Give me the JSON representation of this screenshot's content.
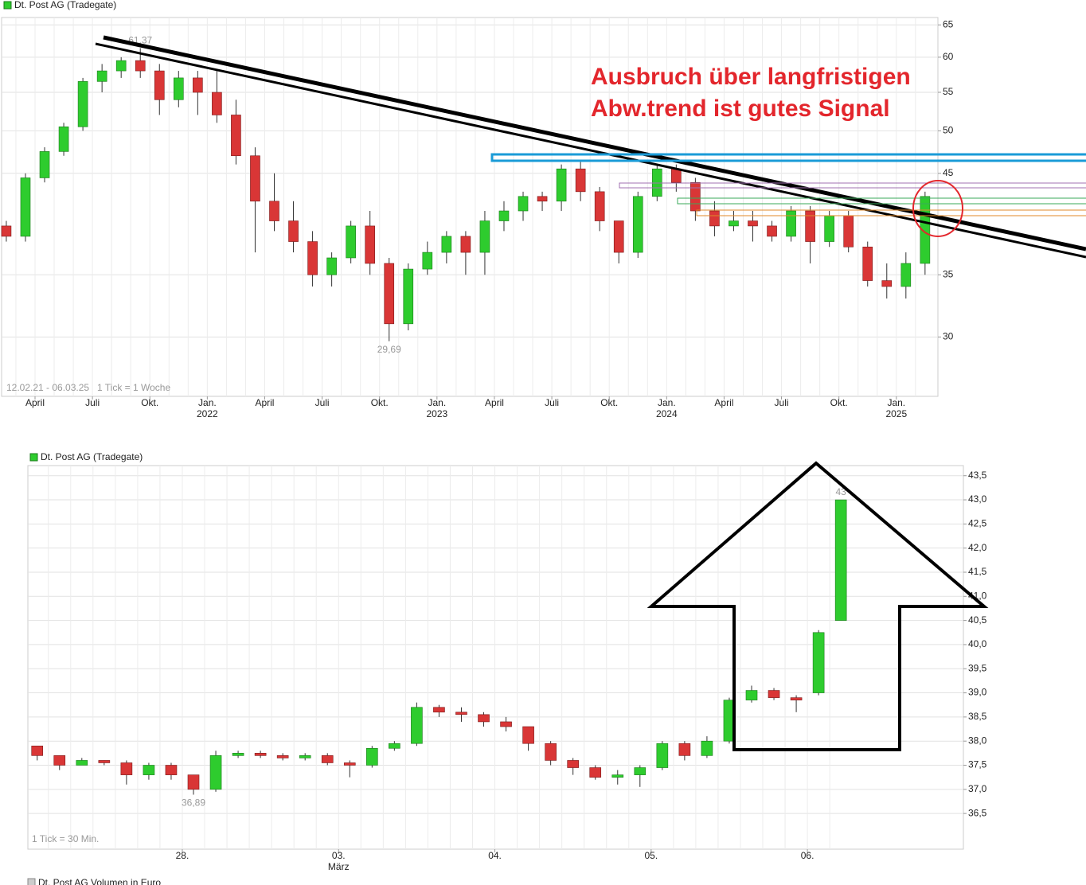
{
  "chart_data": [
    {
      "type": "candlestick",
      "series_name": "Dt. Post AG (Tradegate)",
      "up_color": "#2ecc2e",
      "down_color": "#d93636",
      "period": "12.02.21 - 06.03.25",
      "interval": "1 Tick = 1 Woche",
      "log_scale": true,
      "grid": true,
      "categories": [
        null,
        null,
        "April",
        null,
        null,
        "Juli",
        null,
        null,
        "Okt.",
        null,
        null,
        "Jan.",
        null,
        null,
        "April",
        null,
        null,
        "Juli",
        null,
        null,
        "Okt.",
        null,
        null,
        "Jan.",
        null,
        null,
        "April",
        null,
        null,
        "Juli",
        null,
        null,
        "Okt.",
        null,
        null,
        "Jan.",
        null,
        null,
        "April",
        null,
        null,
        "Juli",
        null,
        null,
        "Okt.",
        null,
        null,
        "Jan.",
        null
      ],
      "years": [
        null,
        null,
        null,
        null,
        null,
        null,
        null,
        null,
        null,
        null,
        null,
        "2022",
        null,
        null,
        null,
        null,
        null,
        null,
        null,
        null,
        null,
        null,
        null,
        "2023",
        null,
        null,
        null,
        null,
        null,
        null,
        null,
        null,
        null,
        null,
        null,
        "2024",
        null,
        null,
        null,
        null,
        null,
        null,
        null,
        null,
        null,
        null,
        null,
        "2025",
        null
      ],
      "open": [
        39.5,
        38.5,
        44.5,
        47.5,
        50.5,
        56.5,
        58,
        59.5,
        58,
        54,
        57,
        55,
        52,
        47,
        42,
        40,
        38,
        35,
        36.5,
        39.5,
        36,
        31,
        35.5,
        37,
        38.5,
        37,
        40,
        41,
        42.5,
        42,
        45.5,
        43,
        40,
        37,
        42.5,
        45.5,
        44,
        41,
        39.5,
        40,
        39.5,
        38.5,
        41,
        38,
        40.5,
        37.5,
        34.5,
        34,
        36
      ],
      "high": [
        40,
        45,
        48,
        51,
        57,
        59,
        60,
        61.37,
        59,
        58,
        58,
        58,
        54,
        48,
        45,
        42,
        39,
        37,
        40,
        41,
        36.5,
        36,
        38,
        39,
        39,
        41,
        42,
        43,
        43,
        46,
        46.5,
        43.5,
        40,
        43,
        46,
        46,
        44.5,
        42,
        41,
        41,
        40,
        41.5,
        41.5,
        41,
        41,
        38,
        36,
        37,
        43
      ],
      "low": [
        38,
        38,
        44,
        47,
        50,
        55,
        57,
        57,
        52,
        53,
        52,
        51,
        46,
        37,
        39,
        37,
        34,
        34,
        36,
        35,
        29.69,
        30.5,
        35,
        36,
        35,
        35,
        39,
        40,
        41,
        41,
        42,
        39,
        36,
        36.5,
        42,
        43,
        40,
        38.5,
        39,
        38,
        38,
        38,
        36,
        37.5,
        37,
        34,
        33,
        33,
        35
      ],
      "close": [
        38.5,
        44.5,
        47.5,
        50.5,
        56.5,
        58,
        59.5,
        58,
        54,
        57,
        55,
        52,
        47,
        42,
        40,
        38,
        35,
        36.5,
        39.5,
        36,
        31,
        35.5,
        37,
        38.5,
        37,
        40,
        41,
        42.5,
        42,
        45.5,
        43,
        40,
        37,
        42.5,
        45.5,
        44,
        41,
        39.5,
        40,
        39.5,
        38.5,
        41,
        38,
        40.5,
        37.5,
        34.5,
        34,
        36,
        42.5
      ],
      "ylim": [
        25.9,
        66.2
      ],
      "yticks": [
        30,
        35,
        45,
        50,
        55,
        60,
        65
      ],
      "annotations": [
        {
          "label": "61,37",
          "value": 61.37
        },
        {
          "label": "29,69",
          "value": 29.69
        }
      ]
    },
    {
      "type": "candlestick",
      "series_name": "Dt. Post AG (Tradegate)",
      "up_color": "#2ecc2e",
      "down_color": "#d93636",
      "interval": "1 Tick = 30 Min.",
      "log_scale": false,
      "grid": true,
      "categories": [
        null,
        null,
        null,
        null,
        null,
        null,
        null,
        "28.",
        null,
        null,
        null,
        null,
        null,
        null,
        "03.",
        null,
        null,
        null,
        null,
        null,
        null,
        "04.",
        null,
        null,
        null,
        null,
        null,
        null,
        "05.",
        null,
        null,
        null,
        null,
        null,
        null,
        "06.",
        null
      ],
      "years": [
        null,
        null,
        null,
        null,
        null,
        null,
        null,
        null,
        null,
        null,
        null,
        null,
        null,
        null,
        "März",
        null,
        null,
        null,
        null,
        null,
        null,
        null,
        null,
        null,
        null,
        null,
        null,
        null,
        null,
        null,
        null,
        null,
        null,
        null,
        null,
        null,
        null
      ],
      "open": [
        37.9,
        37.7,
        37.5,
        37.6,
        37.55,
        37.3,
        37.5,
        37.3,
        37.0,
        37.7,
        37.75,
        37.7,
        37.65,
        37.7,
        37.55,
        37.5,
        37.85,
        37.95,
        38.7,
        38.6,
        38.55,
        38.4,
        38.3,
        37.95,
        37.6,
        37.45,
        37.25,
        37.3,
        37.45,
        37.95,
        37.7,
        38.0,
        38.85,
        39.05,
        38.9,
        39.0,
        40.5
      ],
      "high": [
        37.9,
        37.7,
        37.65,
        37.6,
        37.6,
        37.55,
        37.55,
        37.3,
        37.8,
        37.8,
        37.8,
        37.75,
        37.75,
        37.75,
        37.6,
        37.9,
        38.0,
        38.8,
        38.75,
        38.7,
        38.6,
        38.5,
        38.3,
        38.0,
        37.65,
        37.5,
        37.4,
        37.5,
        38.0,
        38.0,
        38.1,
        38.9,
        39.15,
        39.1,
        38.95,
        40.3,
        43
      ],
      "low": [
        37.6,
        37.4,
        37.5,
        37.5,
        37.1,
        37.2,
        37.2,
        36.89,
        36.95,
        37.65,
        37.65,
        37.6,
        37.6,
        37.5,
        37.25,
        37.45,
        37.8,
        37.9,
        38.5,
        38.4,
        38.3,
        38.2,
        37.8,
        37.5,
        37.3,
        37.2,
        37.1,
        37.05,
        37.4,
        37.6,
        37.65,
        37.95,
        38.8,
        38.85,
        38.6,
        38.95,
        40.5
      ],
      "close": [
        37.7,
        37.5,
        37.6,
        37.55,
        37.3,
        37.5,
        37.3,
        37.0,
        37.7,
        37.75,
        37.7,
        37.65,
        37.7,
        37.55,
        37.5,
        37.85,
        37.95,
        38.7,
        38.6,
        38.55,
        38.4,
        38.3,
        37.95,
        37.6,
        37.45,
        37.25,
        37.3,
        37.45,
        37.95,
        37.7,
        38.0,
        38.85,
        39.05,
        38.9,
        38.85,
        40.25,
        43
      ],
      "ylim": [
        35.76,
        43.71
      ],
      "yticks": [
        {
          "value": 36.5,
          "label": "36,5"
        },
        {
          "value": 37,
          "label": "37,0"
        },
        {
          "value": 37.5,
          "label": "37,5"
        },
        {
          "value": 38,
          "label": "38,0"
        },
        {
          "value": 38.5,
          "label": "38,5"
        },
        {
          "value": 39,
          "label": "39,0"
        },
        {
          "value": 39.5,
          "label": "39,5"
        },
        {
          "value": 40,
          "label": "40,0"
        },
        {
          "value": 40.5,
          "label": "40,5"
        },
        {
          "value": 41,
          "label": "41,0"
        },
        {
          "value": 41.5,
          "label": "41,5"
        },
        {
          "value": 42,
          "label": "42,0"
        },
        {
          "value": 42.5,
          "label": "42,5"
        },
        {
          "value": 43,
          "label": "43,0"
        },
        {
          "value": 43.5,
          "label": "43,5"
        }
      ],
      "annotations": [
        {
          "label": "36,89",
          "value": 36.89
        },
        {
          "label": "43",
          "value": 43
        }
      ]
    }
  ],
  "annotation_text": [
    "Ausbruch über langfristigen",
    "Abw.trend ist gutes Signal"
  ],
  "footer": "Dt. Post AG Volumen in Euro"
}
